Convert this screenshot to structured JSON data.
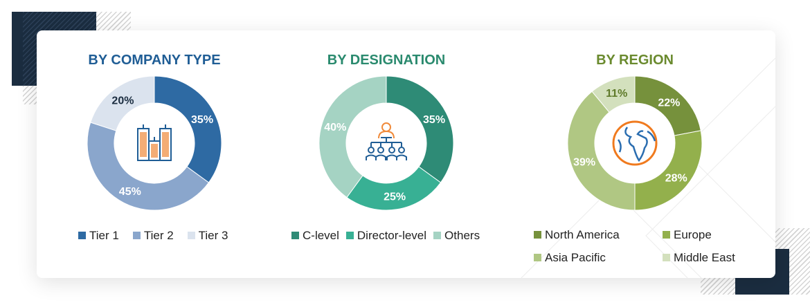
{
  "chart_data": [
    {
      "type": "pie",
      "title": "BY COMPANY TYPE",
      "title_color": "#1f5d95",
      "center_icon": "buildings-icon",
      "categories": [
        "Tier 1",
        "Tier 2",
        "Tier 3"
      ],
      "values": [
        35,
        45,
        20
      ],
      "labels": [
        "35%",
        "45%",
        "20%"
      ],
      "colors": [
        "#2e6aa3",
        "#8aa6cc",
        "#dbe3ee"
      ],
      "label_colors": [
        "#ffffff",
        "#ffffff",
        "#1b2d40"
      ],
      "legend": "bottom"
    },
    {
      "type": "pie",
      "title": "BY DESIGNATION",
      "title_color": "#2a8a6e",
      "center_icon": "org-chart-people-icon",
      "categories": [
        "C-level",
        "Director-level",
        "Others"
      ],
      "values": [
        35,
        25,
        40
      ],
      "labels": [
        "35%",
        "25%",
        "40%"
      ],
      "colors": [
        "#2e8b76",
        "#38b094",
        "#a5d3c3"
      ],
      "label_colors": [
        "#ffffff",
        "#ffffff",
        "#ffffff"
      ],
      "legend": "bottom"
    },
    {
      "type": "pie",
      "title": "BY REGION",
      "title_color": "#6a8a2e",
      "center_icon": "globe-icon",
      "categories": [
        "North America",
        "Europe",
        "Asia Pacific",
        "Middle East"
      ],
      "values": [
        22,
        28,
        39,
        11
      ],
      "labels": [
        "22%",
        "28%",
        "39%",
        "11%"
      ],
      "colors": [
        "#76913c",
        "#93b04c",
        "#b0c783",
        "#d3e0bd"
      ],
      "label_colors": [
        "#ffffff",
        "#ffffff",
        "#ffffff",
        "#5f7a2a"
      ],
      "legend": "bottom"
    }
  ]
}
